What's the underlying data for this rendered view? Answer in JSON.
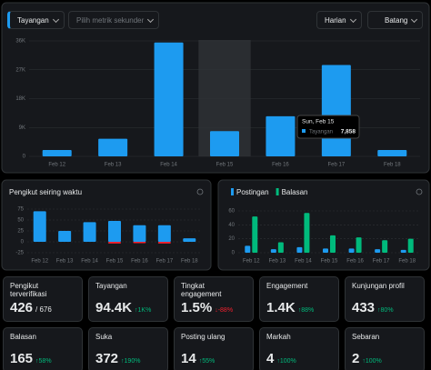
{
  "controls": {
    "metric": "Tayangan",
    "secondary": "Pilih metrik sekunder",
    "period": "Harian",
    "style": "Batang"
  },
  "chart_data": [
    {
      "type": "bar",
      "categories": [
        "Feb 12",
        "Feb 13",
        "Feb 14",
        "Feb 15",
        "Feb 16",
        "Feb 17",
        "Feb 18"
      ],
      "values": [
        2000,
        5500,
        35500,
        7858,
        12500,
        28500,
        2000
      ],
      "color": "#1d9bf0",
      "ylim": [
        0,
        36000
      ],
      "yticks": [
        0,
        {
          "value": 9000,
          "label": "9K"
        },
        {
          "value": 18000,
          "label": "18K"
        },
        {
          "value": 27000,
          "label": "27K"
        },
        {
          "value": 36000,
          "label": "36K"
        }
      ],
      "grid": true,
      "tooltip": {
        "title": "Sun, Feb 15",
        "label": "Tayangan",
        "value_label": "7,858"
      }
    },
    {
      "type": "bar",
      "title": "Pengikut seiring waktu",
      "categories": [
        "Feb 12",
        "Feb 13",
        "Feb 14",
        "Feb 15",
        "Feb 16",
        "Feb 17",
        "Feb 18"
      ],
      "series": [
        {
          "color": "#1d9bf0",
          "values": [
            70,
            25,
            45,
            48,
            38,
            38,
            8
          ]
        },
        {
          "color": "#f4212e",
          "values": [
            0,
            0,
            0,
            -4,
            -3,
            -4,
            0
          ]
        }
      ],
      "ylim": [
        -25,
        75
      ],
      "yticks": [
        -25,
        0,
        25,
        50,
        75
      ],
      "grid": true,
      "stacked": true
    },
    {
      "type": "bar",
      "categories": [
        "Feb 12",
        "Feb 13",
        "Feb 14",
        "Feb 15",
        "Feb 16",
        "Feb 17",
        "Feb 18"
      ],
      "series": [
        {
          "name": "Postingan",
          "color": "#1d9bf0",
          "values": [
            10,
            5,
            8,
            6,
            6,
            5,
            4
          ]
        },
        {
          "name": "Balasan",
          "color": "#00ba7c",
          "values": [
            52,
            15,
            57,
            25,
            22,
            18,
            20
          ]
        }
      ],
      "ylim": [
        0,
        60
      ],
      "yticks": [
        0,
        20,
        40,
        60
      ],
      "grid": true,
      "grouped": true
    }
  ],
  "stats": [
    {
      "label": "Pengikut terverifikasi",
      "value": "426",
      "sub": "/ 676"
    },
    {
      "label": "Tayangan",
      "value": "94.4K",
      "change": "↑1K%"
    },
    {
      "label": "Tingkat engagement",
      "value": "1.5%",
      "change": "↓-88%"
    },
    {
      "label": "Engagement",
      "value": "1.4K",
      "change": "↑88%"
    },
    {
      "label": "Kunjungan profil",
      "value": "433",
      "change": "↑80%"
    },
    {
      "label": "Balasan",
      "value": "165",
      "change": "↑58%"
    },
    {
      "label": "Suka",
      "value": "372",
      "change": "↑190%"
    },
    {
      "label": "Posting ulang",
      "value": "14",
      "change": "↑55%"
    },
    {
      "label": "Markah",
      "value": "4",
      "change": "↑100%"
    },
    {
      "label": "Sebaran",
      "value": "2",
      "change": "↑100%"
    }
  ]
}
